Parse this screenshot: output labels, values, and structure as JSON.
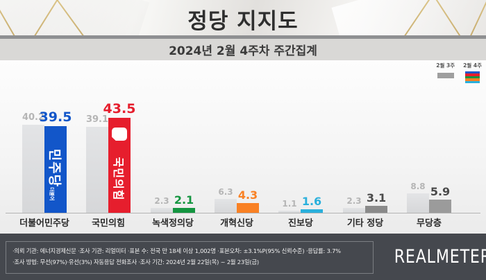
{
  "header": {
    "title": "정당 지지도"
  },
  "subheader": {
    "title": "2024년 2월 4주차 주간집계"
  },
  "legend": {
    "prev": "2월 3주",
    "cur": "2월 4주"
  },
  "chart_data": {
    "type": "bar",
    "title": "정당 지지도",
    "subtitle": "2024년 2월 4주차 주간집계",
    "categories": [
      "더불어민주당",
      "국민의힘",
      "녹색정의당",
      "개혁신당",
      "진보당",
      "기타 정당",
      "무당층"
    ],
    "series": [
      {
        "name": "2월 3주",
        "values": [
          40.2,
          39.1,
          2.3,
          6.3,
          1.1,
          2.3,
          8.8
        ],
        "color": "#dcdddf",
        "label_color": "#b5b5b5"
      },
      {
        "name": "2월 4주",
        "values": [
          39.5,
          43.5,
          2.1,
          4.3,
          1.6,
          3.1,
          5.9
        ],
        "colors": [
          "#1256c9",
          "#e61e2d",
          "#149540",
          "#f98124",
          "#2ab0dc",
          "#8a8a8a",
          "#9b9b9b"
        ],
        "label_colors": [
          "#1256c9",
          "#e61e2d",
          "#149540",
          "#f98124",
          "#2ab0dc",
          "#4a4a4a",
          "#4a4a4a"
        ]
      }
    ],
    "ylim": [
      0,
      50
    ],
    "legend_position": "top-right",
    "grid": false,
    "value_labels": true
  },
  "bar_logos": {
    "minjoo_small": "더불어",
    "minjoo_main": "민주당",
    "ppp": "국민의힘"
  },
  "footer": {
    "line1": "·의뢰 기관: 에너지경제신문  ·조사 기관: 리얼미터 ·표본 수: 전국 만 18세 이상 1,002명 ·표본오차: ±3.1%P(95% 신뢰수준) ·응답률: 3.7%",
    "line2": "·조사 방법: 무선(97%)·유선(3%) 자동응답 전화조사 ·조사 기간: 2024년 2월 22일(목) ~ 2월 23일(금)",
    "logo": "REALMETER"
  }
}
